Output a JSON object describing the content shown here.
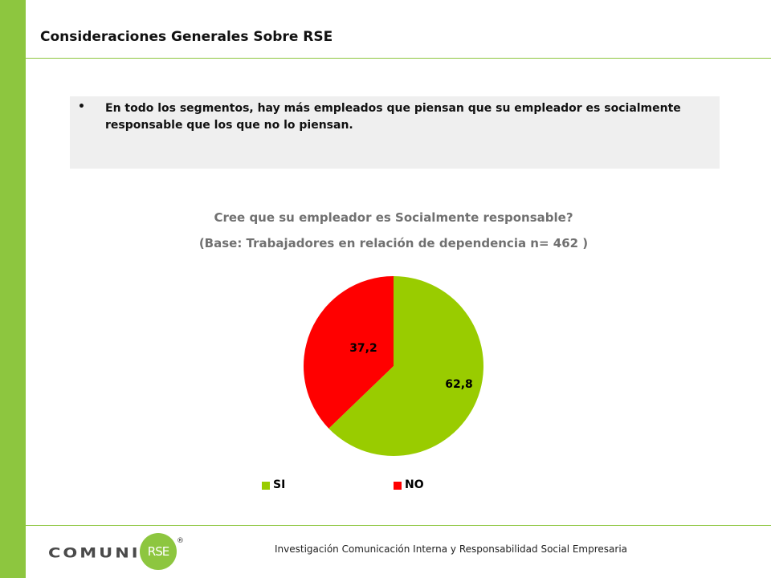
{
  "page": {
    "title": "Consideraciones Generales Sobre RSE",
    "bullet": "•",
    "summary": "En todo los segmentos, hay más empleados que piensan que su empleador es socialmente responsable que los que no lo piensan."
  },
  "colors": {
    "accent": "#8dc63f",
    "si": "#99cc00",
    "no": "#ff0000",
    "box": "#efefef"
  },
  "chart_data": {
    "type": "pie",
    "title": "Cree que su empleador es Socialmente responsable?",
    "subtitle": "(Base: Trabajadores en relación de dependencia n= 462 )",
    "categories": [
      "SI",
      "NO"
    ],
    "values": [
      62.8,
      37.2
    ],
    "value_labels": [
      "62,8",
      "37,2"
    ],
    "colors": [
      "#99cc00",
      "#ff0000"
    ],
    "legend_position": "bottom"
  },
  "footer": {
    "logo_wordmark": "COMUNICA",
    "logo_badge": "RSE",
    "logo_reg": "®",
    "text": "Investigación Comunicación Interna y Responsabilidad Social Empresaria"
  }
}
